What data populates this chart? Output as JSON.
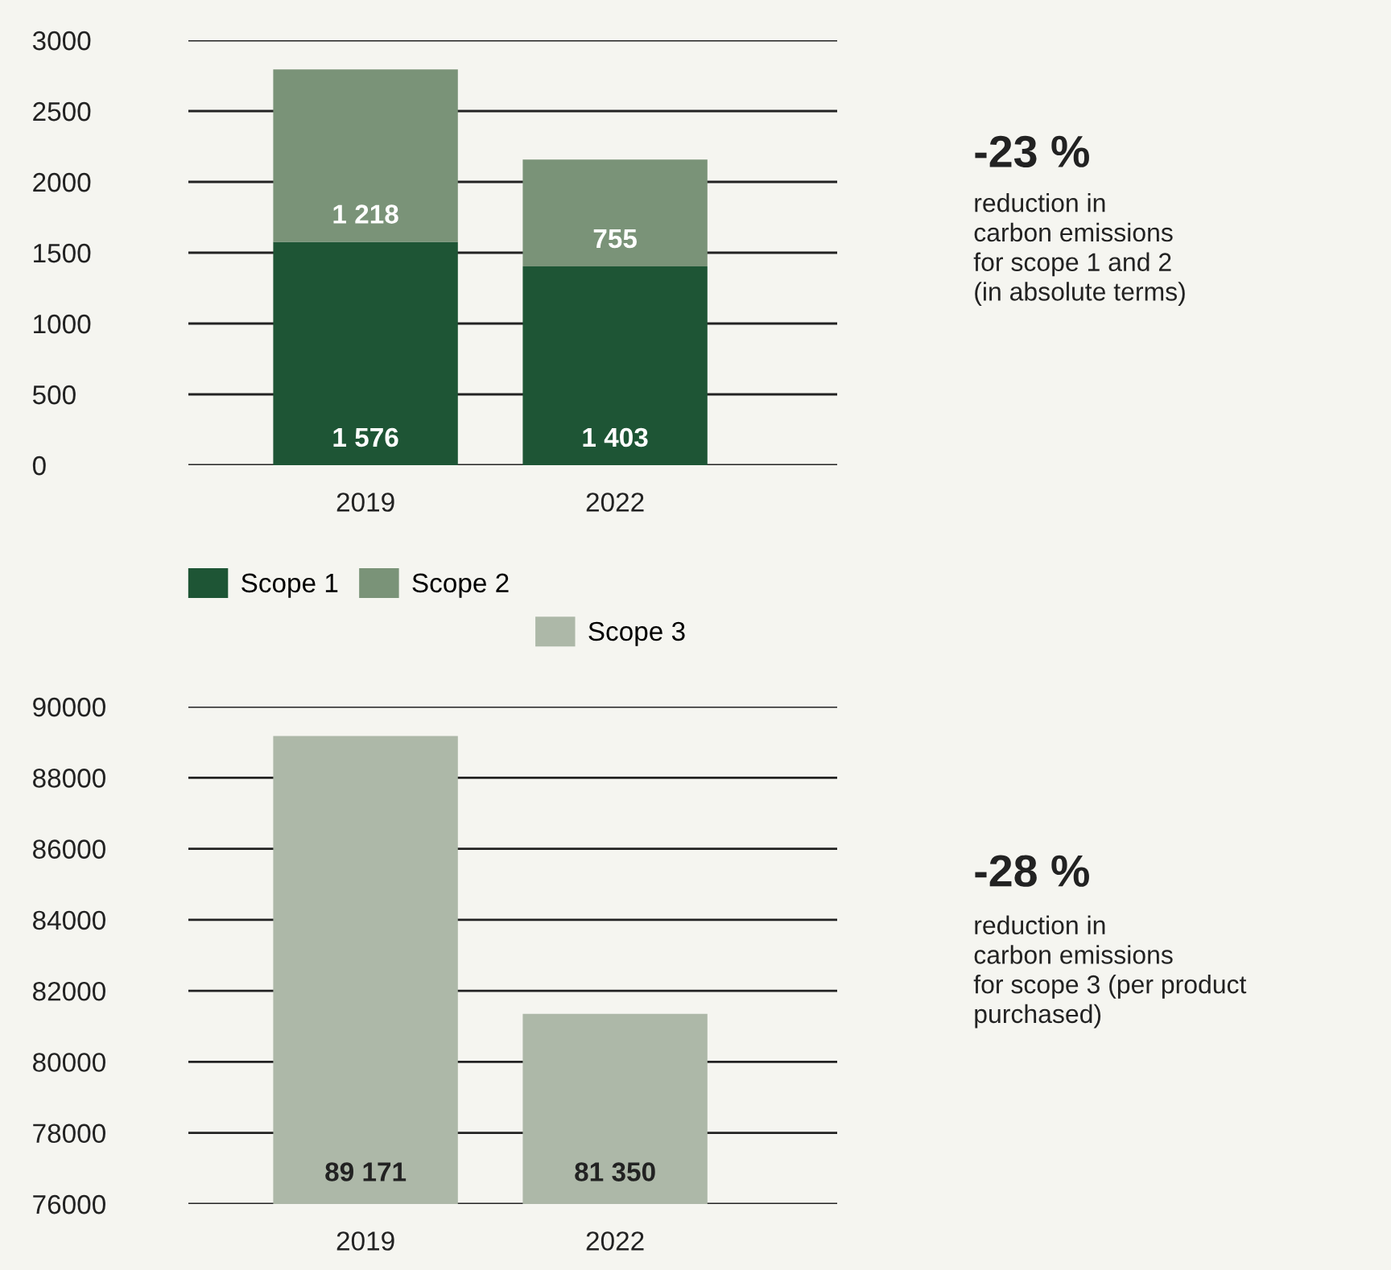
{
  "chart_data": [
    {
      "type": "bar",
      "stacked": true,
      "categories": [
        "2019",
        "2022"
      ],
      "ylim": [
        0,
        3000
      ],
      "yticks": [
        0,
        500,
        1000,
        1500,
        2000,
        2500,
        3000
      ],
      "grid": "y",
      "legend": "bottom",
      "series": [
        {
          "name": "Scope 1",
          "color": "#1e5535",
          "values": [
            1576,
            1403
          ],
          "value_labels": [
            "1 576",
            "1 403"
          ]
        },
        {
          "name": "Scope 2",
          "color": "#7a9378",
          "values": [
            1218,
            755
          ],
          "value_labels": [
            "1 218",
            "755"
          ]
        }
      ],
      "annotations": [
        "-23 %",
        "reduction in\ncarbon emissions\nfor scope 1 and 2\n(in absolute terms)"
      ]
    },
    {
      "type": "bar",
      "categories": [
        "2019",
        "2022"
      ],
      "ylim": [
        76000,
        90000
      ],
      "yticks": [
        76000,
        78000,
        80000,
        82000,
        84000,
        86000,
        88000,
        90000
      ],
      "grid": "y",
      "legend": "top",
      "series": [
        {
          "name": "Scope 3",
          "color": "#adb8a8",
          "values": [
            89171,
            81350
          ],
          "value_labels": [
            "89 171",
            "81 350"
          ]
        }
      ],
      "annotations": [
        "-28 %",
        "reduction in\ncarbon emissions\nfor scope 3 (per product\npurchased)"
      ]
    }
  ]
}
